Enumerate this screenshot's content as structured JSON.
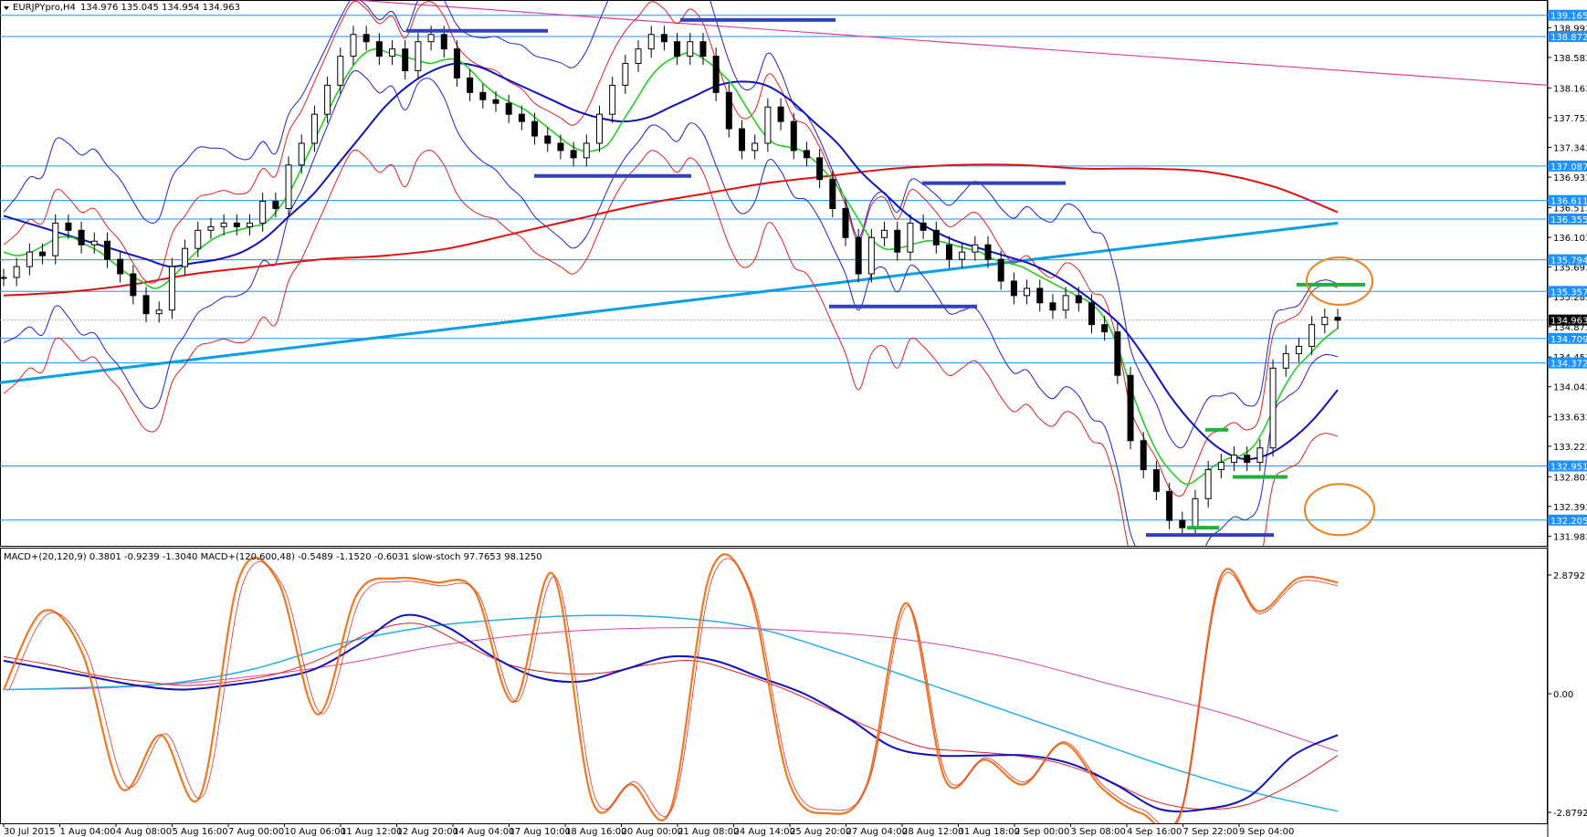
{
  "header": {
    "symbol": "EURJPYpro,H4",
    "ohlc": "134.976 135.045 134.954 134.963",
    "sub_title": "MACD+(20,120,9) 0.3801 -0.9239 -1.3040  MACD+(120,600,48) -0.5489 -1.1520 -0.6031  slow-stoch 97.7653 98.1250"
  },
  "chart_data": [
    {
      "type": "line",
      "title": "EURJPYpro,H4",
      "ylim": [
        131.85,
        139.35
      ],
      "y_ticks": [
        "138.993",
        "138.583",
        "138.163",
        "137.753",
        "137.343",
        "136.933",
        "136.513",
        "136.103",
        "135.693",
        "135.283",
        "134.873",
        "134.453",
        "134.043",
        "133.633",
        "133.223",
        "132.803",
        "132.393",
        "131.983"
      ],
      "x_ticks": [
        "30 Jul 2015",
        "1 Aug 04:00",
        "4 Aug 08:00",
        "5 Aug 16:00",
        "7 Aug 00:00",
        "10 Aug 06:00",
        "11 Aug 12:00",
        "12 Aug 20:00",
        "14 Aug 04:00",
        "17 Aug 10:00",
        "18 Aug 16:00",
        "20 Aug 00:00",
        "21 Aug 08:00",
        "24 Aug 14:00",
        "25 Aug 20:00",
        "27 Aug 04:00",
        "28 Aug 12:00",
        "31 Aug 18:00",
        "2 Sep 00:00",
        "3 Sep 08:00",
        "4 Sep 16:00",
        "7 Sep 22:00",
        "9 Sep 04:00"
      ],
      "price_levels": [
        {
          "label": "139.165",
          "value": 139.165
        },
        {
          "label": "138.872",
          "value": 138.872
        },
        {
          "label": "137.087",
          "value": 137.087
        },
        {
          "label": "136.611",
          "value": 136.611
        },
        {
          "label": "136.355",
          "value": 136.355
        },
        {
          "label": "135.794",
          "value": 135.794
        },
        {
          "label": "135.357",
          "value": 135.357
        },
        {
          "label": "134.709",
          "value": 134.709
        },
        {
          "label": "134.372",
          "value": 134.372
        },
        {
          "label": "132.951",
          "value": 132.951
        },
        {
          "label": "132.205",
          "value": 132.205
        }
      ],
      "current_price": {
        "label": "134.963",
        "value": 134.963
      },
      "close_series": [
        135.55,
        135.7,
        135.9,
        135.85,
        136.3,
        136.2,
        136.0,
        136.05,
        135.8,
        135.6,
        135.3,
        135.05,
        135.1,
        135.7,
        135.95,
        136.2,
        136.25,
        136.3,
        136.25,
        136.3,
        136.6,
        136.5,
        137.1,
        137.4,
        137.8,
        138.2,
        138.6,
        138.9,
        138.8,
        138.6,
        138.7,
        138.4,
        138.8,
        138.9,
        138.7,
        138.3,
        138.1,
        138.0,
        137.95,
        137.8,
        137.7,
        137.5,
        137.4,
        137.3,
        137.2,
        137.4,
        137.8,
        138.2,
        138.5,
        138.7,
        138.9,
        138.8,
        138.6,
        138.8,
        138.6,
        138.1,
        137.6,
        137.3,
        137.4,
        137.9,
        137.7,
        137.3,
        137.2,
        136.9,
        136.5,
        136.1,
        135.6,
        136.1,
        136.2,
        135.9,
        136.3,
        136.2,
        136.0,
        135.8,
        135.9,
        136.0,
        135.8,
        135.5,
        135.3,
        135.4,
        135.2,
        135.1,
        135.3,
        135.2,
        134.9,
        134.8,
        134.2,
        133.3,
        132.9,
        132.6,
        132.2,
        132.1,
        132.5,
        132.9,
        133.0,
        133.1,
        133.0,
        133.2,
        134.3,
        134.5,
        134.6,
        134.9,
        135.0,
        134.96
      ],
      "green_ema": [
        135.9,
        135.85,
        135.9,
        136.0,
        136.1,
        136.1,
        136.0,
        135.9,
        135.75,
        135.6,
        135.5,
        135.4,
        135.5,
        135.7,
        135.9,
        136.05,
        136.15,
        136.2,
        136.25,
        136.3,
        136.5,
        136.8,
        137.2,
        137.6,
        138.0,
        138.35,
        138.6,
        138.7,
        138.65,
        138.6,
        138.55,
        138.5,
        138.55,
        138.55,
        138.4,
        138.2,
        138.05,
        137.95,
        137.85,
        137.7,
        137.55,
        137.4,
        137.3,
        137.3,
        137.4,
        137.7,
        138.0,
        138.3,
        138.5,
        138.6,
        138.65,
        138.55,
        138.4,
        138.2,
        137.9,
        137.6,
        137.4,
        137.35,
        137.3,
        137.15,
        136.95,
        136.7,
        136.4,
        136.1,
        135.95,
        135.95,
        136.0,
        136.05,
        136.05,
        136.0,
        135.95,
        135.9,
        135.8,
        135.75,
        135.7,
        135.6,
        135.5,
        135.4,
        135.3,
        135.2,
        135.0,
        134.6,
        134.0,
        133.5,
        133.1,
        132.85,
        132.7,
        132.8,
        132.95,
        133.05,
        133.1,
        133.25,
        133.6,
        134.0,
        134.3,
        134.5,
        134.7,
        134.85
      ],
      "blue_sma": [
        136.4,
        136.3,
        136.2,
        136.1,
        136.0,
        135.9,
        135.8,
        135.7,
        135.75,
        135.8,
        135.9,
        136.1,
        136.4,
        136.7,
        137.1,
        137.5,
        137.9,
        138.2,
        138.4,
        138.5,
        138.45,
        138.3,
        138.15,
        138.0,
        137.85,
        137.75,
        137.7,
        137.75,
        137.9,
        138.05,
        138.2,
        138.25,
        138.2,
        138.0,
        137.7,
        137.4,
        137.0,
        136.7,
        136.4,
        136.2,
        136.05,
        135.95,
        135.85,
        135.75,
        135.6,
        135.4,
        135.15,
        134.85,
        134.4,
        133.9,
        133.5,
        133.2,
        133.05,
        133.1,
        133.3,
        133.6,
        134.0
      ],
      "red_sma": [
        135.3,
        135.35,
        135.45,
        135.6,
        135.7,
        135.8,
        135.85,
        135.95,
        136.15,
        136.35,
        136.55,
        136.7,
        136.85,
        136.95,
        137.05,
        137.1,
        137.1,
        137.05,
        137.05,
        137.0,
        136.8,
        136.45
      ],
      "cyan_trend": [
        134.1,
        136.3
      ],
      "pink_trend": [
        139.5,
        138.2
      ]
    },
    {
      "type": "line",
      "title": "MACD+(20,120,9) / MACD+(120,600,48) / slow-stoch",
      "y_ticks": [
        "2.8792",
        "0.00",
        "-2.8792"
      ],
      "ylim": [
        -3.1,
        3.1
      ],
      "stoch": [
        0.1,
        2.0,
        1.0,
        -2.3,
        -1.0,
        -2.5,
        2.8,
        2.7,
        -0.5,
        2.4,
        2.8,
        2.7,
        2.5,
        -0.2,
        2.9,
        -2.6,
        -2.2,
        -2.8,
        2.9,
        2.5,
        -2.1,
        -2.9,
        -2.2,
        2.2,
        -2.1,
        -1.6,
        -2.2,
        -1.2,
        -2.3,
        -2.9,
        -2.9,
        2.8,
        2.0,
        2.8,
        2.7
      ],
      "macd_blue": [
        0.8,
        0.6,
        0.4,
        0.2,
        0.1,
        0.2,
        0.35,
        0.6,
        1.2,
        1.9,
        1.6,
        0.9,
        0.4,
        0.3,
        0.6,
        0.9,
        0.8,
        0.4,
        0.0,
        -0.6,
        -1.3,
        -1.5,
        -1.5,
        -1.5,
        -1.7,
        -2.2,
        -2.8,
        -2.8,
        -2.5,
        -1.5,
        -1.0
      ],
      "macd_signal": [
        0.9,
        0.7,
        0.45,
        0.3,
        0.2,
        0.3,
        0.5,
        0.9,
        1.5,
        1.7,
        1.2,
        0.7,
        0.5,
        0.5,
        0.7,
        0.8,
        0.5,
        0.1,
        -0.4,
        -0.9,
        -1.3,
        -1.4,
        -1.5,
        -1.7,
        -2.1,
        -2.6,
        -2.8,
        -2.7,
        -2.2,
        -1.5
      ],
      "macd2_cyan": [
        0.1,
        0.15,
        0.25,
        0.6,
        1.2,
        1.6,
        1.8,
        1.9,
        1.85,
        1.6,
        1.0,
        0.3,
        -0.4,
        -1.1,
        -1.8,
        -2.4,
        -2.85
      ],
      "macd2_pink": [
        0.1,
        0.15,
        0.35,
        0.7,
        1.2,
        1.5,
        1.6,
        1.55,
        1.35,
        0.9,
        0.2,
        -0.5,
        -1.4
      ]
    }
  ]
}
